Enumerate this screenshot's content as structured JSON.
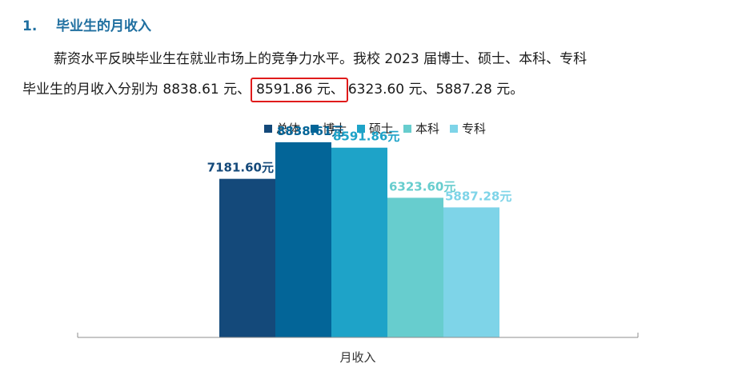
{
  "heading": {
    "number": "1.",
    "title": "毕业生的月收入"
  },
  "paragraph": {
    "line1": "薪资水平反映毕业生在就业市场上的竞争力水平。我校 2023 届博士、硕士、本科、专科",
    "line2_before": "毕业生的月收入分别为 8838.61 元、",
    "line2_highlight": "8591.86 元、",
    "line2_after": "6323.60 元、5887.28 元。"
  },
  "chart_data": {
    "type": "bar",
    "title": "",
    "xlabel": "",
    "ylabel": "",
    "categories": [
      "月收入"
    ],
    "legend_position": "top",
    "grid": false,
    "ylim": [
      0,
      10500
    ],
    "series": [
      {
        "name": "总体",
        "values": [
          7181.6
        ],
        "label": "7181.60元",
        "color": "#14497a"
      },
      {
        "name": "博士",
        "values": [
          8838.61
        ],
        "label": "8838.61元",
        "color": "#036598"
      },
      {
        "name": "硕士",
        "values": [
          8591.86
        ],
        "label": "8591.86元",
        "color": "#1ea3c8"
      },
      {
        "name": "本科",
        "values": [
          6323.6
        ],
        "label": "6323.60元",
        "color": "#67cdce"
      },
      {
        "name": "专科",
        "values": [
          5887.28
        ],
        "label": "5887.28元",
        "color": "#7ed4e8"
      }
    ]
  }
}
